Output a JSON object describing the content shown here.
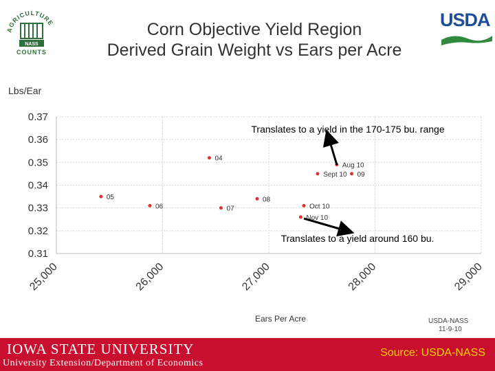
{
  "header": {
    "title_line1": "Corn Objective Yield Region",
    "title_line2": "Derived Grain Weight vs Ears per Acre",
    "usda_logo_text": "USDA",
    "left_logo_text_top": "AGRICULTURE",
    "left_logo_text_bottom": "COUNTS",
    "left_logo_badge": "NASS"
  },
  "chart_data": {
    "type": "scatter",
    "ylabel": "Lbs/Ear",
    "xlabel": "Ears Per Acre",
    "xlim": [
      25000,
      29000
    ],
    "ylim": [
      0.31,
      0.37
    ],
    "x_ticks": [
      "25,000",
      "26,000",
      "27,000",
      "28,000",
      "29,000"
    ],
    "y_ticks": [
      "0.37",
      "0.36",
      "0.35",
      "0.34",
      "0.33",
      "0.32",
      "0.31"
    ],
    "grid": true,
    "points": [
      {
        "label": "05",
        "x": 25420,
        "y": 0.335
      },
      {
        "label": "06",
        "x": 25880,
        "y": 0.331
      },
      {
        "label": "04",
        "x": 26440,
        "y": 0.352
      },
      {
        "label": "07",
        "x": 26550,
        "y": 0.33
      },
      {
        "label": "08",
        "x": 26890,
        "y": 0.334
      },
      {
        "label": "Aug 10",
        "x": 27640,
        "y": 0.349
      },
      {
        "label": "Sept 10",
        "x": 27460,
        "y": 0.345
      },
      {
        "label": "09",
        "x": 27780,
        "y": 0.345
      },
      {
        "label": "Oct 10",
        "x": 27330,
        "y": 0.331
      },
      {
        "label": "Nov 10",
        "x": 27300,
        "y": 0.326
      }
    ],
    "annotations": [
      "Translates to a yield in the 170-175 bu. range",
      "Translates to a yield around 160 bu."
    ],
    "credit": [
      "USDA-NASS",
      "11-9-10"
    ],
    "colors": {
      "point": "#e03030",
      "grid": "#d8d8d8",
      "arrow": "#000000"
    }
  },
  "footer": {
    "university": "IOWA STATE UNIVERSITY",
    "department": "University Extension/Department of Economics",
    "source": "Source: USDA-NASS",
    "color": "#c8102e"
  }
}
